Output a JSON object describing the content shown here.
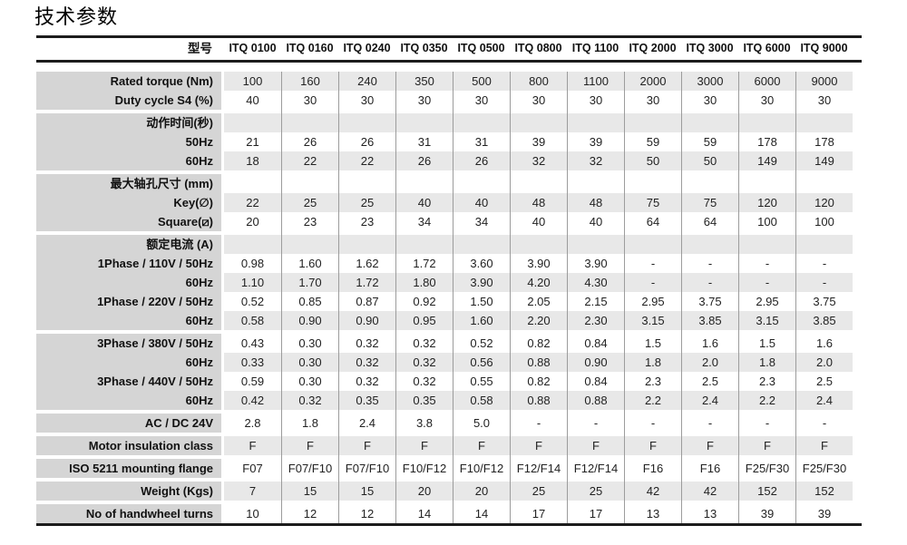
{
  "page": {
    "title": "技术参数"
  },
  "colors": {
    "label_column_bg": "#d5d5d5",
    "stripe_bg": "#e8e8e8",
    "separator": "#9c9c9c",
    "rule": "#1c1c1c"
  },
  "table": {
    "model_label": "型号",
    "models": [
      "ITQ 0100",
      "ITQ 0160",
      "ITQ 0240",
      "ITQ 0350",
      "ITQ 0500",
      "ITQ 0800",
      "ITQ 1100",
      "ITQ 2000",
      "ITQ 3000",
      "ITQ 6000",
      "ITQ 9000"
    ],
    "sections": [
      {
        "rows": [
          {
            "label": "Rated torque (Nm)",
            "values": [
              "100",
              "160",
              "240",
              "350",
              "500",
              "800",
              "1100",
              "2000",
              "3000",
              "6000",
              "9000"
            ]
          },
          {
            "label": "Duty cycle S4 (%)",
            "values": [
              "40",
              "30",
              "30",
              "30",
              "30",
              "30",
              "30",
              "30",
              "30",
              "30",
              "30"
            ]
          }
        ]
      },
      {
        "rows": [
          {
            "label": "动作时间(秒)",
            "values": []
          },
          {
            "label": "50Hz",
            "values": [
              "21",
              "26",
              "26",
              "31",
              "31",
              "39",
              "39",
              "59",
              "59",
              "178",
              "178"
            ]
          },
          {
            "label": "60Hz",
            "values": [
              "18",
              "22",
              "22",
              "26",
              "26",
              "32",
              "32",
              "50",
              "50",
              "149",
              "149"
            ]
          }
        ]
      },
      {
        "rows": [
          {
            "label": "最大轴孔尺寸 (mm)",
            "values": []
          },
          {
            "label": "Key(∅)",
            "values": [
              "22",
              "25",
              "25",
              "40",
              "40",
              "48",
              "48",
              "75",
              "75",
              "120",
              "120"
            ]
          },
          {
            "label": "Square(⧄)",
            "values": [
              "20",
              "23",
              "23",
              "34",
              "34",
              "40",
              "40",
              "64",
              "64",
              "100",
              "100"
            ]
          }
        ]
      },
      {
        "rows": [
          {
            "label": "额定电流 (A)",
            "values": []
          },
          {
            "label": "1Phase / 110V / 50Hz",
            "values": [
              "0.98",
              "1.60",
              "1.62",
              "1.72",
              "3.60",
              "3.90",
              "3.90",
              "-",
              "-",
              "-",
              "-"
            ]
          },
          {
            "label": "60Hz",
            "values": [
              "1.10",
              "1.70",
              "1.72",
              "1.80",
              "3.90",
              "4.20",
              "4.30",
              "-",
              "-",
              "-",
              "-"
            ]
          },
          {
            "label": "1Phase / 220V / 50Hz",
            "values": [
              "0.52",
              "0.85",
              "0.87",
              "0.92",
              "1.50",
              "2.05",
              "2.15",
              "2.95",
              "3.75",
              "2.95",
              "3.75"
            ]
          },
          {
            "label": "60Hz",
            "values": [
              "0.58",
              "0.90",
              "0.90",
              "0.95",
              "1.60",
              "2.20",
              "2.30",
              "3.15",
              "3.85",
              "3.15",
              "3.85"
            ]
          }
        ]
      },
      {
        "rows": [
          {
            "label": "3Phase / 380V / 50Hz",
            "values": [
              "0.43",
              "0.30",
              "0.32",
              "0.32",
              "0.52",
              "0.82",
              "0.84",
              "1.5",
              "1.6",
              "1.5",
              "1.6"
            ]
          },
          {
            "label": "60Hz",
            "values": [
              "0.33",
              "0.30",
              "0.32",
              "0.32",
              "0.56",
              "0.88",
              "0.90",
              "1.8",
              "2.0",
              "1.8",
              "2.0"
            ]
          },
          {
            "label": "3Phase / 440V / 50Hz",
            "values": [
              "0.59",
              "0.30",
              "0.32",
              "0.32",
              "0.55",
              "0.82",
              "0.84",
              "2.3",
              "2.5",
              "2.3",
              "2.5"
            ]
          },
          {
            "label": "60Hz",
            "values": [
              "0.42",
              "0.32",
              "0.35",
              "0.35",
              "0.58",
              "0.88",
              "0.88",
              "2.2",
              "2.4",
              "2.2",
              "2.4"
            ]
          }
        ]
      },
      {
        "rows": [
          {
            "label": "AC / DC 24V",
            "values": [
              "2.8",
              "1.8",
              "2.4",
              "3.8",
              "5.0",
              "-",
              "-",
              "-",
              "-",
              "-",
              "-"
            ]
          }
        ]
      },
      {
        "rows": [
          {
            "label": "Motor insulation class",
            "values": [
              "F",
              "F",
              "F",
              "F",
              "F",
              "F",
              "F",
              "F",
              "F",
              "F",
              "F"
            ]
          }
        ]
      },
      {
        "rows": [
          {
            "label": "ISO 5211 mounting flange",
            "values": [
              "F07",
              "F07/F10",
              "F07/F10",
              "F10/F12",
              "F10/F12",
              "F12/F14",
              "F12/F14",
              "F16",
              "F16",
              "F25/F30",
              "F25/F30"
            ]
          }
        ]
      },
      {
        "rows": [
          {
            "label": "Weight (Kgs)",
            "values": [
              "7",
              "15",
              "15",
              "20",
              "20",
              "25",
              "25",
              "42",
              "42",
              "152",
              "152"
            ]
          }
        ]
      },
      {
        "rows": [
          {
            "label": "No of handwheel turns",
            "values": [
              "10",
              "12",
              "12",
              "14",
              "14",
              "17",
              "17",
              "13",
              "13",
              "39",
              "39"
            ]
          }
        ]
      }
    ]
  }
}
